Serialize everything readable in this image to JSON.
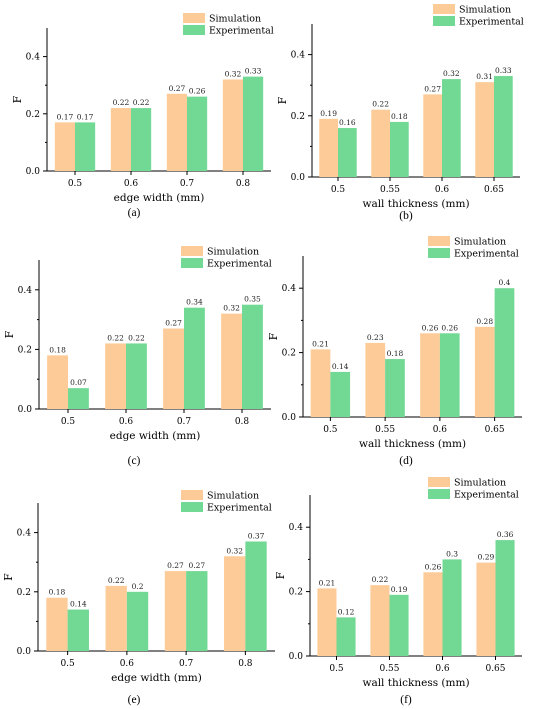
{
  "colors": {
    "simulation": "#FDCB97",
    "experimental": "#72D995",
    "axis": "#000000"
  },
  "chart_data": [
    {
      "panel_label": "(a)",
      "type": "bar",
      "xlabel": "edge width (mm)",
      "ylabel": "F",
      "ylim": [
        0,
        0.5
      ],
      "yticks": [
        "0.0",
        "0.2",
        "0.4"
      ],
      "categories": [
        "0.5",
        "0.6",
        "0.7",
        "0.8"
      ],
      "series": [
        {
          "name": "Simulation",
          "values": [
            0.17,
            0.22,
            0.27,
            0.32
          ],
          "labels": [
            "0.17",
            "0.22",
            "0.27",
            "0.32"
          ]
        },
        {
          "name": "Experimental",
          "values": [
            0.17,
            0.22,
            0.26,
            0.33
          ],
          "labels": [
            "0.17",
            "0.22",
            "0.26",
            "0.33"
          ]
        }
      ]
    },
    {
      "panel_label": "(b)",
      "type": "bar",
      "xlabel": "wall thickness (mm)",
      "ylabel": "F",
      "ylim": [
        0,
        0.5
      ],
      "yticks": [
        "0.0",
        "0.2",
        "0.4"
      ],
      "categories": [
        "0.5",
        "0.55",
        "0.6",
        "0.65"
      ],
      "series": [
        {
          "name": "Simulation",
          "values": [
            0.19,
            0.22,
            0.27,
            0.31
          ],
          "labels": [
            "0.19",
            "0.22",
            "0.27",
            "0.31"
          ]
        },
        {
          "name": "Experimental",
          "values": [
            0.16,
            0.18,
            0.32,
            0.33
          ],
          "labels": [
            "0.16",
            "0.18",
            "0.32",
            "0.33"
          ]
        }
      ]
    },
    {
      "panel_label": "(c)",
      "type": "bar",
      "xlabel": "edge width (mm)",
      "ylabel": "F",
      "ylim": [
        0,
        0.5
      ],
      "yticks": [
        "0.0",
        "0.2",
        "0.4"
      ],
      "categories": [
        "0.5",
        "0.6",
        "0.7",
        "0.8"
      ],
      "series": [
        {
          "name": "Simulation",
          "values": [
            0.18,
            0.22,
            0.27,
            0.32
          ],
          "labels": [
            "0.18",
            "0.22",
            "0.27",
            "0.32"
          ]
        },
        {
          "name": "Experimental",
          "values": [
            0.07,
            0.22,
            0.34,
            0.35
          ],
          "labels": [
            "0.07",
            "0.22",
            "0.34",
            "0.35"
          ]
        }
      ]
    },
    {
      "panel_label": "(d)",
      "type": "bar",
      "xlabel": "wall thickness (mm)",
      "ylabel": "F",
      "ylim": [
        0,
        0.5
      ],
      "yticks": [
        "0.0",
        "0.2",
        "0.4"
      ],
      "categories": [
        "0.5",
        "0.55",
        "0.6",
        "0.65"
      ],
      "series": [
        {
          "name": "Simulation",
          "values": [
            0.21,
            0.23,
            0.26,
            0.28
          ],
          "labels": [
            "0.21",
            "0.23",
            "0.26",
            "0.28"
          ]
        },
        {
          "name": "Experimental",
          "values": [
            0.14,
            0.18,
            0.26,
            0.4
          ],
          "labels": [
            "0.14",
            "0.18",
            "0.26",
            "0.4"
          ]
        }
      ]
    },
    {
      "panel_label": "(e)",
      "type": "bar",
      "xlabel": "edge width (mm)",
      "ylabel": "F",
      "ylim": [
        0,
        0.5
      ],
      "yticks": [
        "0.0",
        "0.2",
        "0.4"
      ],
      "categories": [
        "0.5",
        "0.6",
        "0.7",
        "0.8"
      ],
      "series": [
        {
          "name": "Simulation",
          "values": [
            0.18,
            0.22,
            0.27,
            0.32
          ],
          "labels": [
            "0.18",
            "0.22",
            "0.27",
            "0.32"
          ]
        },
        {
          "name": "Experimental",
          "values": [
            0.14,
            0.2,
            0.27,
            0.37
          ],
          "labels": [
            "0.14",
            "0.2",
            "0.27",
            "0.37"
          ]
        }
      ]
    },
    {
      "panel_label": "(f)",
      "type": "bar",
      "xlabel": "wall thickness (mm)",
      "ylabel": "F",
      "ylim": [
        0,
        0.5
      ],
      "yticks": [
        "0.0",
        "0.2",
        "0.4"
      ],
      "categories": [
        "0.5",
        "0.55",
        "0.6",
        "0.65"
      ],
      "series": [
        {
          "name": "Simulation",
          "values": [
            0.21,
            0.22,
            0.26,
            0.29
          ],
          "labels": [
            "0.21",
            "0.22",
            "0.26",
            "0.29"
          ]
        },
        {
          "name": "Experimental",
          "values": [
            0.12,
            0.19,
            0.3,
            0.36
          ],
          "labels": [
            "0.12",
            "0.19",
            "0.3",
            "0.36"
          ]
        }
      ]
    }
  ]
}
